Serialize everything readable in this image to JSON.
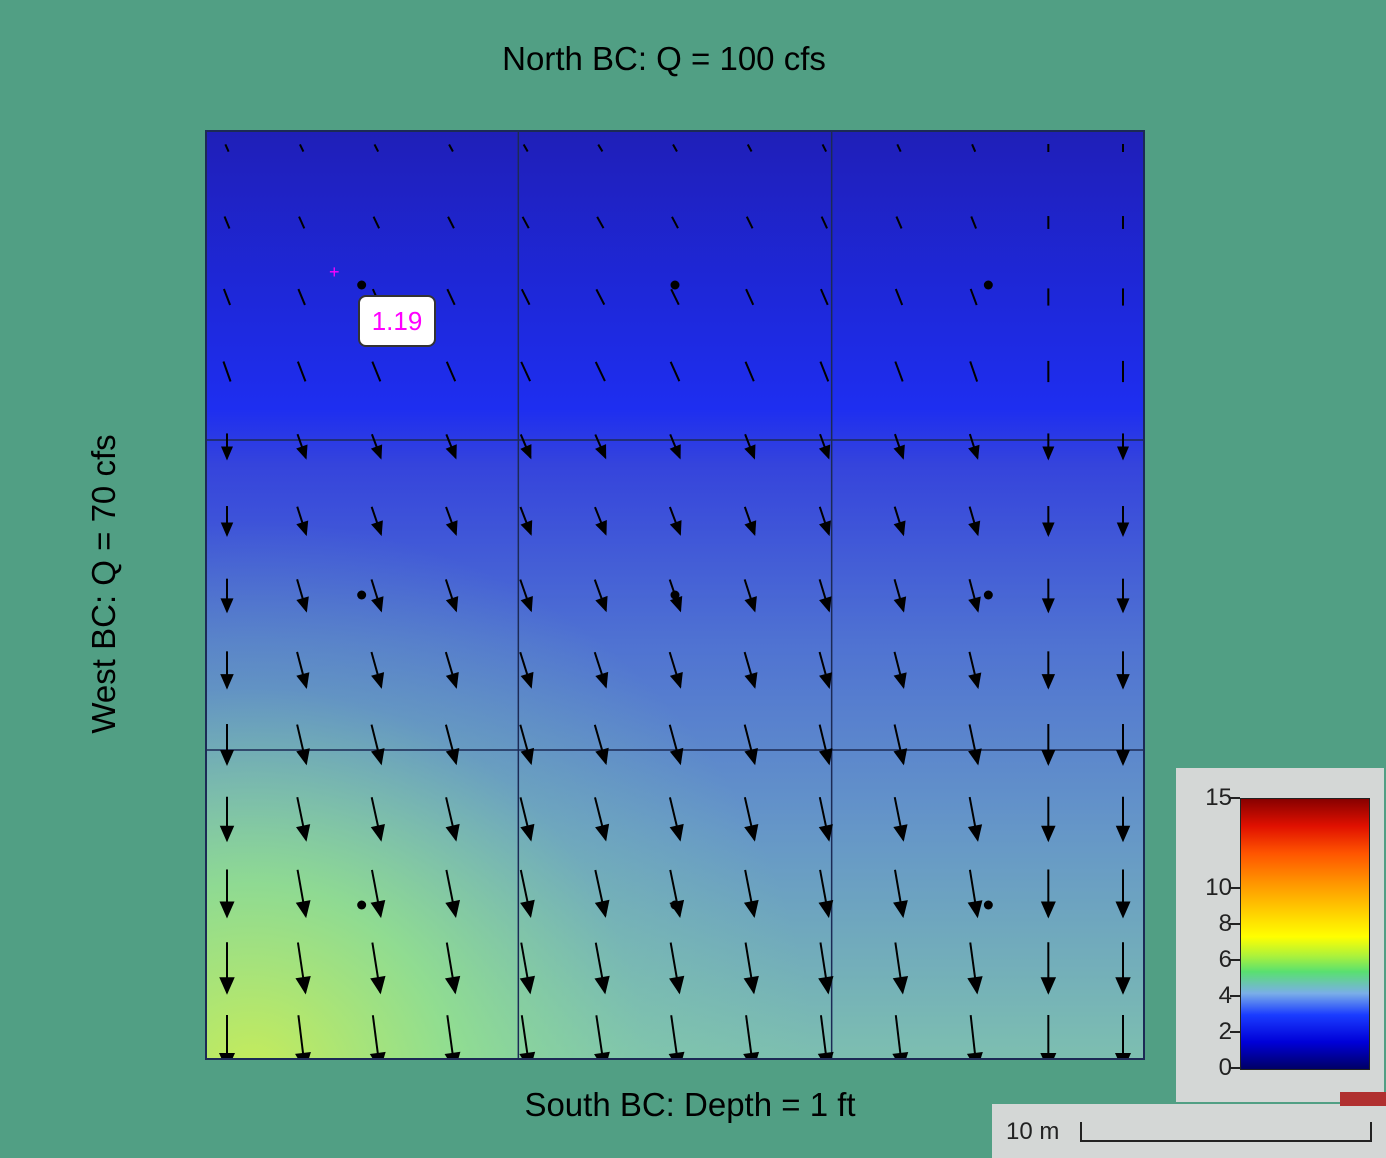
{
  "labels": {
    "north_bc": "North BC: Q = 100 cfs",
    "south_bc": "South BC: Depth  = 1 ft",
    "west_bc": "West BC: Q = 70 cfs"
  },
  "probe": {
    "value_label": "1.19"
  },
  "legend": {
    "ticks": [
      "15",
      "10",
      "8",
      "6",
      "4",
      "2",
      "0"
    ],
    "tick_values": [
      15,
      10,
      8,
      6,
      4,
      2,
      0
    ]
  },
  "scale": {
    "label": "10 m"
  },
  "colors": {
    "background": "#519f84",
    "mesh_line": "#1c2a55",
    "arrow": "#000000",
    "probe_text": "#ff00ff"
  },
  "mesh": {
    "columns": 3,
    "rows": 3,
    "arrow_columns": 13,
    "arrow_rows": 13
  }
}
